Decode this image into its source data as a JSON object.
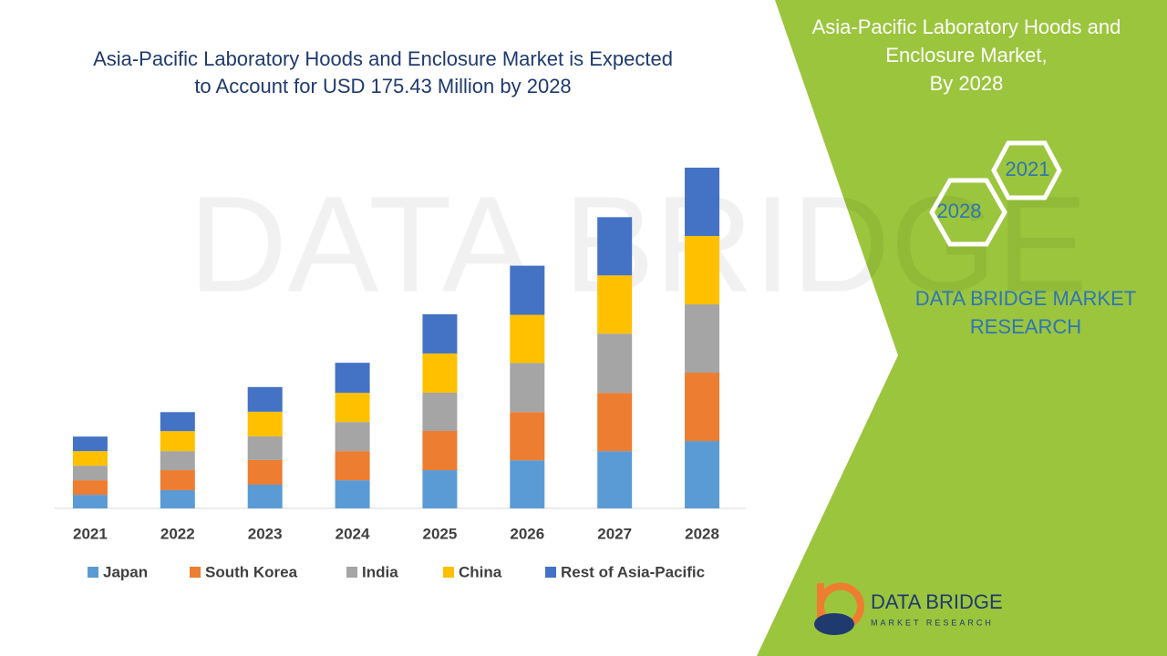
{
  "chart_data": {
    "type": "stacked-bar",
    "title": "Asia-Pacific Laboratory Hoods and Enclosure Market is Expected to Account for USD 175.43 Million by 2028",
    "categories": [
      "2021",
      "2022",
      "2023",
      "2024",
      "2025",
      "2026",
      "2027",
      "2028"
    ],
    "series": [
      {
        "name": "Japan",
        "color": "#5b9bd5",
        "values": [
          7.0,
          9.4,
          12.2,
          14.5,
          19.7,
          24.8,
          29.5,
          34.7
        ]
      },
      {
        "name": "South Korea",
        "color": "#ed7d31",
        "values": [
          7.5,
          10.3,
          12.7,
          15.0,
          20.2,
          24.8,
          30.0,
          35.2
        ]
      },
      {
        "name": "India",
        "color": "#a5a5a5",
        "values": [
          7.5,
          9.8,
          12.2,
          15.0,
          19.7,
          25.3,
          30.5,
          35.2
        ]
      },
      {
        "name": "China",
        "color": "#ffc000",
        "values": [
          7.5,
          10.3,
          12.7,
          15.0,
          20.2,
          24.8,
          30.0,
          35.2
        ]
      },
      {
        "name": "Rest of Asia-Pacific",
        "color": "#4472c4",
        "values": [
          7.5,
          9.8,
          12.7,
          15.5,
          20.2,
          25.3,
          30.0,
          35.2
        ]
      }
    ]
  },
  "panel": {
    "title_lines": [
      "Asia-Pacific Laboratory Hoods and",
      "Enclosure Market,",
      "By 2028"
    ],
    "hex_labels": [
      "2021",
      "2028"
    ],
    "brand": "DATA BRIDGE MARKET RESEARCH",
    "logo_name": "DATA BRIDGE",
    "logo_tagline": "MARKET RESEARCH"
  }
}
